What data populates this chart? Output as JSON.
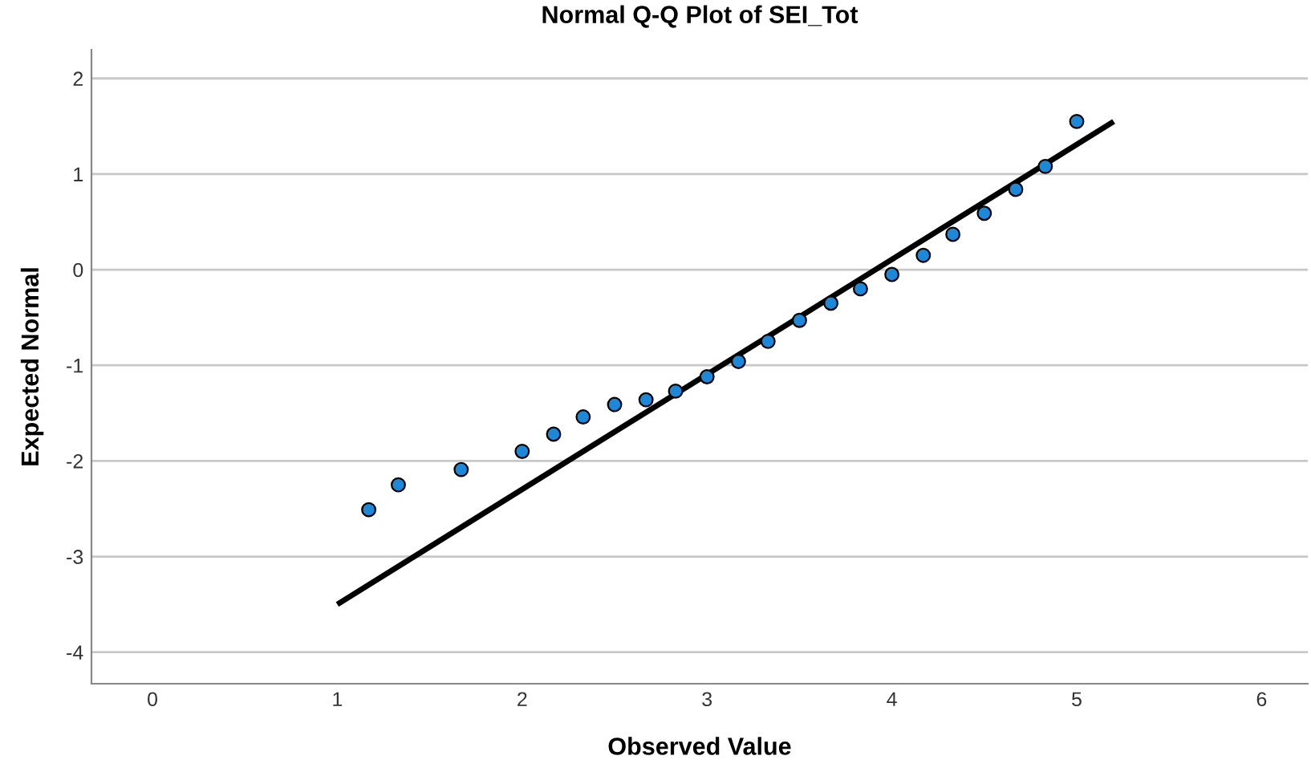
{
  "chart_data": {
    "type": "scatter",
    "title": "Normal Q-Q Plot of SEI_Tot",
    "xlabel": "Observed Value",
    "ylabel": "Expected Normal",
    "series": [
      {
        "color": "#1e88d8",
        "x": [
          1.17,
          1.33,
          1.67,
          2.0,
          2.17,
          2.33,
          2.5,
          2.67,
          2.83,
          3.0,
          3.17,
          3.33,
          3.5,
          3.67,
          3.83,
          4.0,
          4.17,
          4.33,
          4.5,
          4.67,
          4.83,
          5.0
        ],
        "values": [
          -2.51,
          -2.25,
          -2.09,
          -1.9,
          -1.72,
          -1.54,
          -1.41,
          -1.36,
          -1.27,
          -1.12,
          -0.96,
          -0.75,
          -0.53,
          -0.35,
          -0.2,
          -0.05,
          0.15,
          0.37,
          0.59,
          0.84,
          1.08,
          1.55
        ],
        "marker": "circle"
      },
      {
        "type": "line",
        "color": "#000000",
        "x": [
          1.0,
          5.2
        ],
        "values": [
          -3.5,
          1.55
        ],
        "marker": "none",
        "line_style": "solid"
      }
    ],
    "xlim": [
      -0.33,
      6.25
    ],
    "ylim": [
      -4.33,
      2.3
    ],
    "xticks": [
      0,
      1,
      2,
      3,
      4,
      5,
      6
    ],
    "yticks": [
      -4,
      -3,
      -2,
      -1,
      0,
      1,
      2
    ],
    "grid": "y"
  }
}
